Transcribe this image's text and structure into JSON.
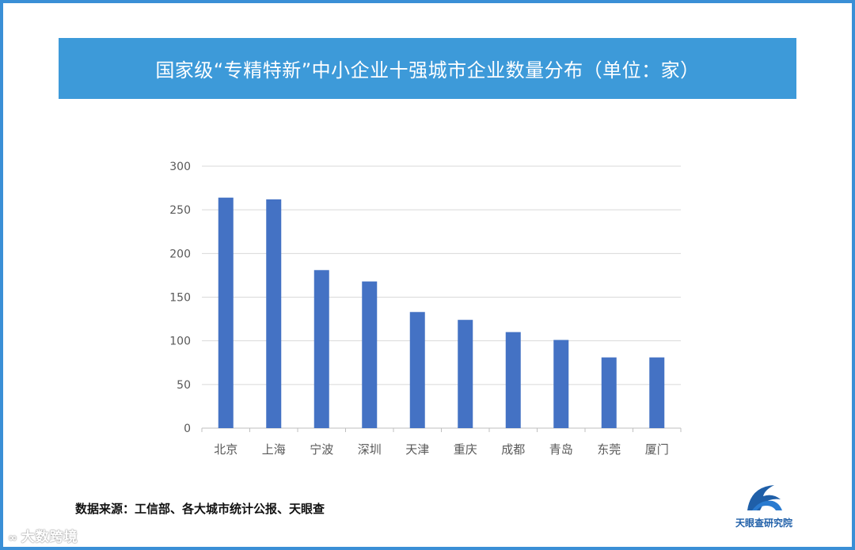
{
  "title": "国家级“专精特新”中小企业十强城市企业数量分布（单位：家）",
  "source": "数据来源：工信部、各大城市统计公报、天眼查",
  "logo_text": "天眼查研究院",
  "watermark": "大数跨境",
  "colors": {
    "banner": "#3d9ad9",
    "bar": "#4472c4",
    "frame": "#3a8fd6",
    "grid": "#d9d9d9",
    "tick": "#595959"
  },
  "icons": {
    "logo": "tianyancha-logo-icon",
    "watermark": "dashujingjing-watermark-icon"
  },
  "chart_data": {
    "type": "bar",
    "title": "国家级“专精特新”中小企业十强城市企业数量分布（单位：家）",
    "xlabel": "",
    "ylabel": "",
    "categories": [
      "北京",
      "上海",
      "宁波",
      "深圳",
      "天津",
      "重庆",
      "成都",
      "青岛",
      "东莞",
      "厦门"
    ],
    "values": [
      264,
      262,
      181,
      168,
      133,
      124,
      110,
      101,
      81,
      81
    ],
    "ylim": [
      0,
      300
    ],
    "yticks": [
      0,
      50,
      100,
      150,
      200,
      250,
      300
    ],
    "grid": true,
    "legend": "none"
  }
}
